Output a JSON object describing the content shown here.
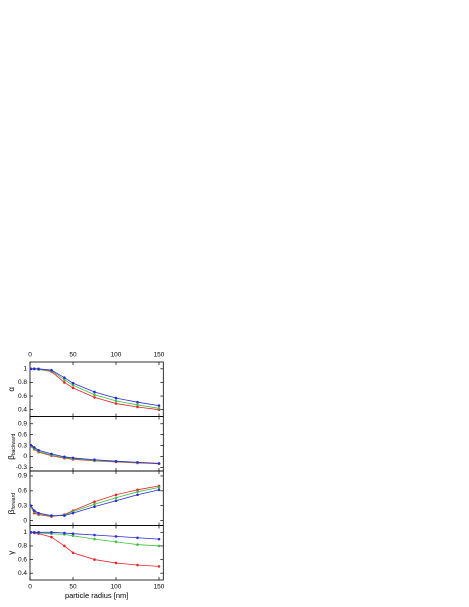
{
  "chart_data": [
    {
      "type": "line",
      "ylabel": "α",
      "xlim": [
        0,
        155
      ],
      "xticks": [
        0,
        50,
        100,
        150
      ],
      "ylim": [
        0.3,
        1.1
      ],
      "yticks": [
        0.4,
        0.6,
        0.8,
        1.0
      ],
      "x": [
        1,
        5,
        10,
        25,
        40,
        50,
        75,
        100,
        125,
        150
      ],
      "series": [
        {
          "color": "#e8232a",
          "values": [
            1.0,
            1.0,
            0.99,
            0.96,
            0.8,
            0.72,
            0.58,
            0.49,
            0.44,
            0.4
          ]
        },
        {
          "color": "#3fc13f",
          "values": [
            1.0,
            1.0,
            0.99,
            0.97,
            0.84,
            0.76,
            0.62,
            0.53,
            0.47,
            0.42
          ]
        },
        {
          "color": "#2b2bd6",
          "values": [
            1.0,
            1.0,
            1.0,
            0.98,
            0.87,
            0.79,
            0.66,
            0.57,
            0.51,
            0.46
          ]
        }
      ]
    },
    {
      "type": "line",
      "ylabel": "β",
      "ylabel_sub": "backward",
      "xlim": [
        0,
        155
      ],
      "xticks": [
        0,
        50,
        100,
        150
      ],
      "ylim": [
        -0.4,
        1.1
      ],
      "yticks": [
        -0.3,
        0.0,
        0.3,
        0.6,
        0.9
      ],
      "x": [
        1,
        5,
        10,
        25,
        40,
        50,
        75,
        100,
        125,
        150
      ],
      "series": [
        {
          "color": "#e8232a",
          "values": [
            0.28,
            0.2,
            0.12,
            0.02,
            -0.05,
            -0.08,
            -0.12,
            -0.15,
            -0.18,
            -0.2
          ]
        },
        {
          "color": "#3fc13f",
          "values": [
            0.29,
            0.22,
            0.14,
            0.04,
            -0.03,
            -0.06,
            -0.11,
            -0.14,
            -0.17,
            -0.19
          ]
        },
        {
          "color": "#2b2bd6",
          "values": [
            0.31,
            0.25,
            0.17,
            0.07,
            -0.01,
            -0.04,
            -0.09,
            -0.13,
            -0.16,
            -0.19
          ]
        }
      ]
    },
    {
      "type": "line",
      "ylabel": "β",
      "ylabel_sub": "forward",
      "xlim": [
        0,
        155
      ],
      "xticks": [
        0,
        50,
        100,
        150
      ],
      "ylim": [
        -0.1,
        1.0
      ],
      "yticks": [
        0.0,
        0.3,
        0.6,
        0.9
      ],
      "x": [
        1,
        5,
        10,
        25,
        40,
        50,
        75,
        100,
        125,
        150
      ],
      "series": [
        {
          "color": "#e8232a",
          "values": [
            0.28,
            0.15,
            0.12,
            0.08,
            0.12,
            0.2,
            0.38,
            0.52,
            0.62,
            0.7
          ]
        },
        {
          "color": "#3fc13f",
          "values": [
            0.28,
            0.18,
            0.14,
            0.09,
            0.11,
            0.18,
            0.33,
            0.46,
            0.58,
            0.67
          ]
        },
        {
          "color": "#2b2bd6",
          "values": [
            0.3,
            0.2,
            0.15,
            0.1,
            0.1,
            0.15,
            0.28,
            0.4,
            0.52,
            0.62
          ]
        }
      ]
    },
    {
      "type": "line",
      "ylabel": "γ",
      "xlabel": "particle radius [nm]",
      "xlim": [
        0,
        155
      ],
      "xticks": [
        0,
        50,
        100,
        150
      ],
      "ylim": [
        0.3,
        1.1
      ],
      "yticks": [
        0.4,
        0.6,
        0.8,
        1.0
      ],
      "x": [
        1,
        5,
        10,
        25,
        40,
        50,
        75,
        100,
        125,
        150
      ],
      "series": [
        {
          "color": "#e8232a",
          "values": [
            1.0,
            0.99,
            0.98,
            0.93,
            0.8,
            0.7,
            0.6,
            0.55,
            0.52,
            0.5
          ]
        },
        {
          "color": "#3fc13f",
          "values": [
            1.0,
            1.0,
            0.99,
            0.98,
            0.97,
            0.95,
            0.9,
            0.86,
            0.82,
            0.8
          ]
        },
        {
          "color": "#2b2bd6",
          "values": [
            1.0,
            1.0,
            1.0,
            1.0,
            0.99,
            0.98,
            0.96,
            0.94,
            0.92,
            0.9
          ]
        }
      ]
    }
  ]
}
